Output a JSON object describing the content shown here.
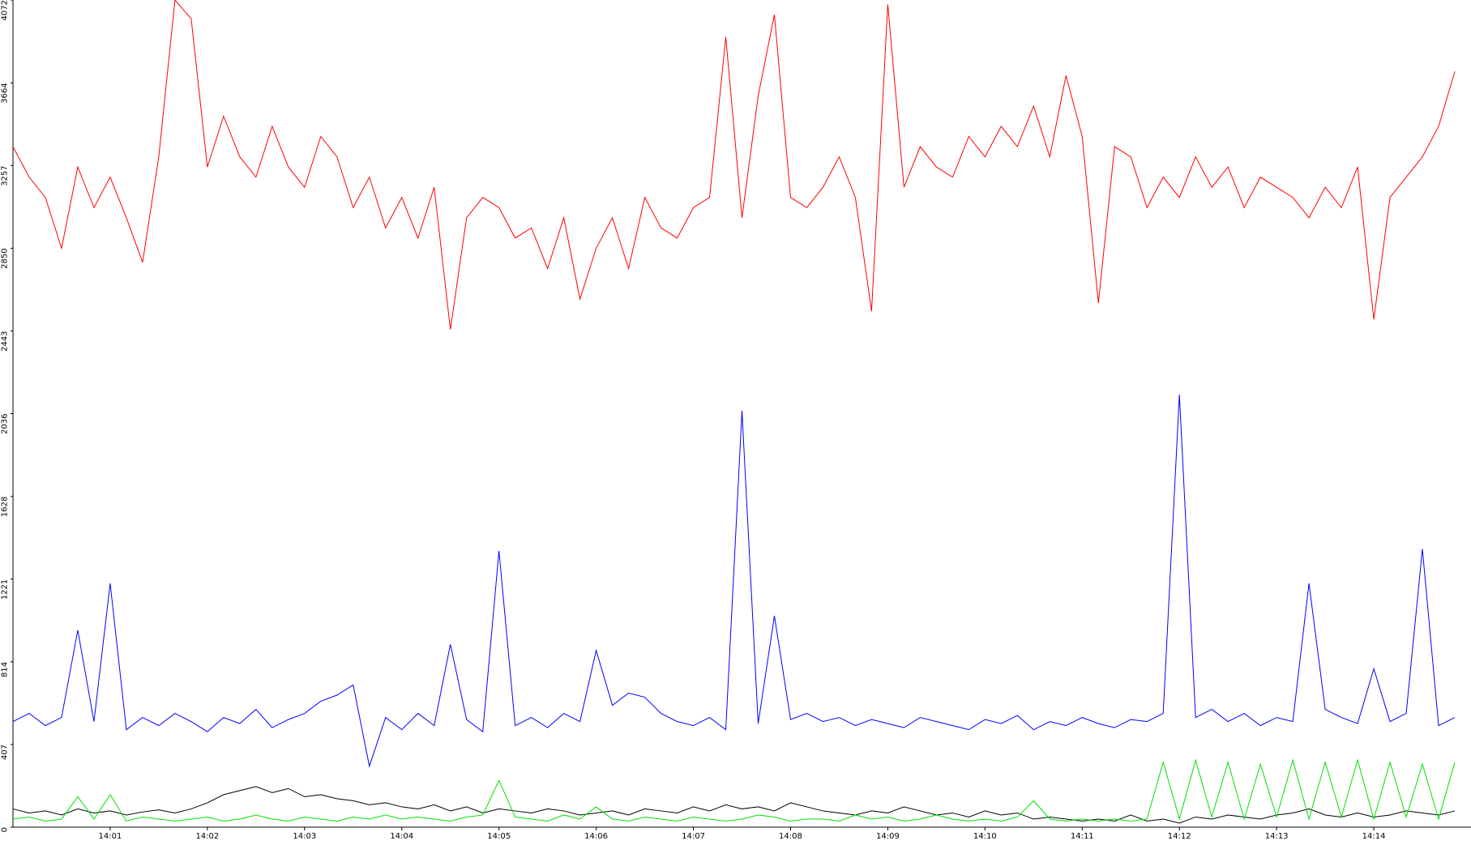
{
  "chart_data": {
    "type": "line",
    "xlim": [
      50400,
      51300
    ],
    "xticks": [
      {
        "value": 50460,
        "label": "14:01"
      },
      {
        "value": 50520,
        "label": "14:02"
      },
      {
        "value": 50580,
        "label": "14:03"
      },
      {
        "value": 50640,
        "label": "14:04"
      },
      {
        "value": 50700,
        "label": "14:05"
      },
      {
        "value": 50760,
        "label": "14:06"
      },
      {
        "value": 50820,
        "label": "14:07"
      },
      {
        "value": 50880,
        "label": "14:08"
      },
      {
        "value": 50940,
        "label": "14:09"
      },
      {
        "value": 51000,
        "label": "14:10"
      },
      {
        "value": 51060,
        "label": "14:11"
      },
      {
        "value": 51120,
        "label": "14:12"
      },
      {
        "value": 51180,
        "label": "14:13"
      },
      {
        "value": 51240,
        "label": "14:14"
      }
    ],
    "ylim": [
      0,
      4072
    ],
    "yticks": [
      0,
      407,
      814,
      1221,
      1628,
      2036,
      2443,
      2850,
      3257,
      3664,
      4072
    ],
    "x": [
      50400,
      50410,
      50420,
      50430,
      50440,
      50450,
      50460,
      50470,
      50480,
      50490,
      50500,
      50510,
      50520,
      50530,
      50540,
      50550,
      50560,
      50570,
      50580,
      50590,
      50600,
      50610,
      50620,
      50630,
      50640,
      50650,
      50660,
      50670,
      50680,
      50690,
      50700,
      50710,
      50720,
      50730,
      50740,
      50750,
      50760,
      50770,
      50780,
      50790,
      50800,
      50810,
      50820,
      50830,
      50840,
      50850,
      50860,
      50870,
      50880,
      50890,
      50900,
      50910,
      50920,
      50930,
      50940,
      50950,
      50960,
      50970,
      50980,
      50990,
      51000,
      51010,
      51020,
      51030,
      51040,
      51050,
      51060,
      51070,
      51080,
      51090,
      51100,
      51110,
      51120,
      51130,
      51140,
      51150,
      51160,
      51170,
      51180,
      51190,
      51200,
      51210,
      51220,
      51230,
      51240,
      51250,
      51260,
      51270,
      51280,
      51290
    ],
    "series": [
      {
        "color": "#ff0000",
        "values": [
          3350,
          3200,
          3100,
          2850,
          3250,
          3050,
          3200,
          3000,
          2780,
          3300,
          4072,
          3980,
          3250,
          3500,
          3300,
          3200,
          3450,
          3250,
          3150,
          3400,
          3300,
          3050,
          3200,
          2950,
          3100,
          2900,
          3150,
          2450,
          3000,
          3100,
          3050,
          2900,
          2950,
          2750,
          3000,
          2600,
          2850,
          3000,
          2750,
          3100,
          2950,
          2900,
          3050,
          3100,
          3890,
          3000,
          3600,
          4000,
          3100,
          3050,
          3150,
          3300,
          3100,
          2540,
          4050,
          3150,
          3350,
          3250,
          3200,
          3400,
          3300,
          3450,
          3350,
          3550,
          3300,
          3700,
          3400,
          2580,
          3350,
          3300,
          3050,
          3200,
          3100,
          3300,
          3150,
          3250,
          3050,
          3200,
          3150,
          3100,
          3000,
          3150,
          3050,
          3250,
          2500,
          3100,
          3200,
          3300,
          3450,
          3720
        ]
      },
      {
        "color": "#0000ff",
        "values": [
          520,
          560,
          500,
          540,
          970,
          520,
          1200,
          480,
          540,
          500,
          560,
          520,
          470,
          540,
          510,
          580,
          490,
          530,
          560,
          620,
          650,
          700,
          300,
          540,
          480,
          560,
          500,
          900,
          530,
          470,
          1360,
          500,
          540,
          490,
          560,
          520,
          870,
          600,
          660,
          640,
          560,
          520,
          500,
          540,
          480,
          2050,
          510,
          1040,
          530,
          560,
          520,
          540,
          500,
          530,
          510,
          490,
          540,
          520,
          500,
          480,
          530,
          510,
          550,
          480,
          520,
          500,
          540,
          510,
          490,
          530,
          520,
          560,
          2130,
          540,
          580,
          520,
          560,
          500,
          540,
          520,
          1200,
          580,
          540,
          510,
          780,
          520,
          560,
          1370,
          500,
          540
        ]
      },
      {
        "color": "#000000",
        "values": [
          90,
          70,
          80,
          60,
          90,
          70,
          80,
          60,
          75,
          85,
          70,
          90,
          120,
          160,
          180,
          200,
          170,
          190,
          150,
          160,
          140,
          130,
          110,
          120,
          100,
          90,
          110,
          80,
          100,
          70,
          90,
          80,
          70,
          90,
          80,
          60,
          70,
          80,
          60,
          90,
          80,
          70,
          100,
          80,
          110,
          90,
          100,
          80,
          120,
          100,
          80,
          70,
          60,
          80,
          70,
          100,
          80,
          60,
          70,
          50,
          80,
          60,
          70,
          40,
          50,
          40,
          30,
          40,
          30,
          60,
          30,
          40,
          20,
          50,
          40,
          60,
          50,
          40,
          60,
          70,
          90,
          60,
          50,
          70,
          50,
          60,
          80,
          70,
          60,
          80
        ]
      },
      {
        "color": "#00e000",
        "values": [
          40,
          50,
          30,
          40,
          150,
          40,
          160,
          30,
          50,
          40,
          30,
          40,
          50,
          30,
          40,
          60,
          40,
          30,
          50,
          40,
          30,
          50,
          40,
          60,
          40,
          50,
          40,
          30,
          50,
          60,
          230,
          50,
          40,
          30,
          60,
          40,
          100,
          40,
          30,
          50,
          40,
          30,
          50,
          40,
          30,
          40,
          60,
          50,
          30,
          40,
          40,
          30,
          60,
          40,
          50,
          30,
          40,
          60,
          40,
          30,
          40,
          30,
          50,
          130,
          40,
          30,
          40,
          30,
          40,
          30,
          40,
          320,
          40,
          330,
          50,
          320,
          40,
          310,
          50,
          330,
          40,
          320,
          50,
          330,
          40,
          320,
          50,
          310,
          40,
          320
        ]
      }
    ]
  }
}
